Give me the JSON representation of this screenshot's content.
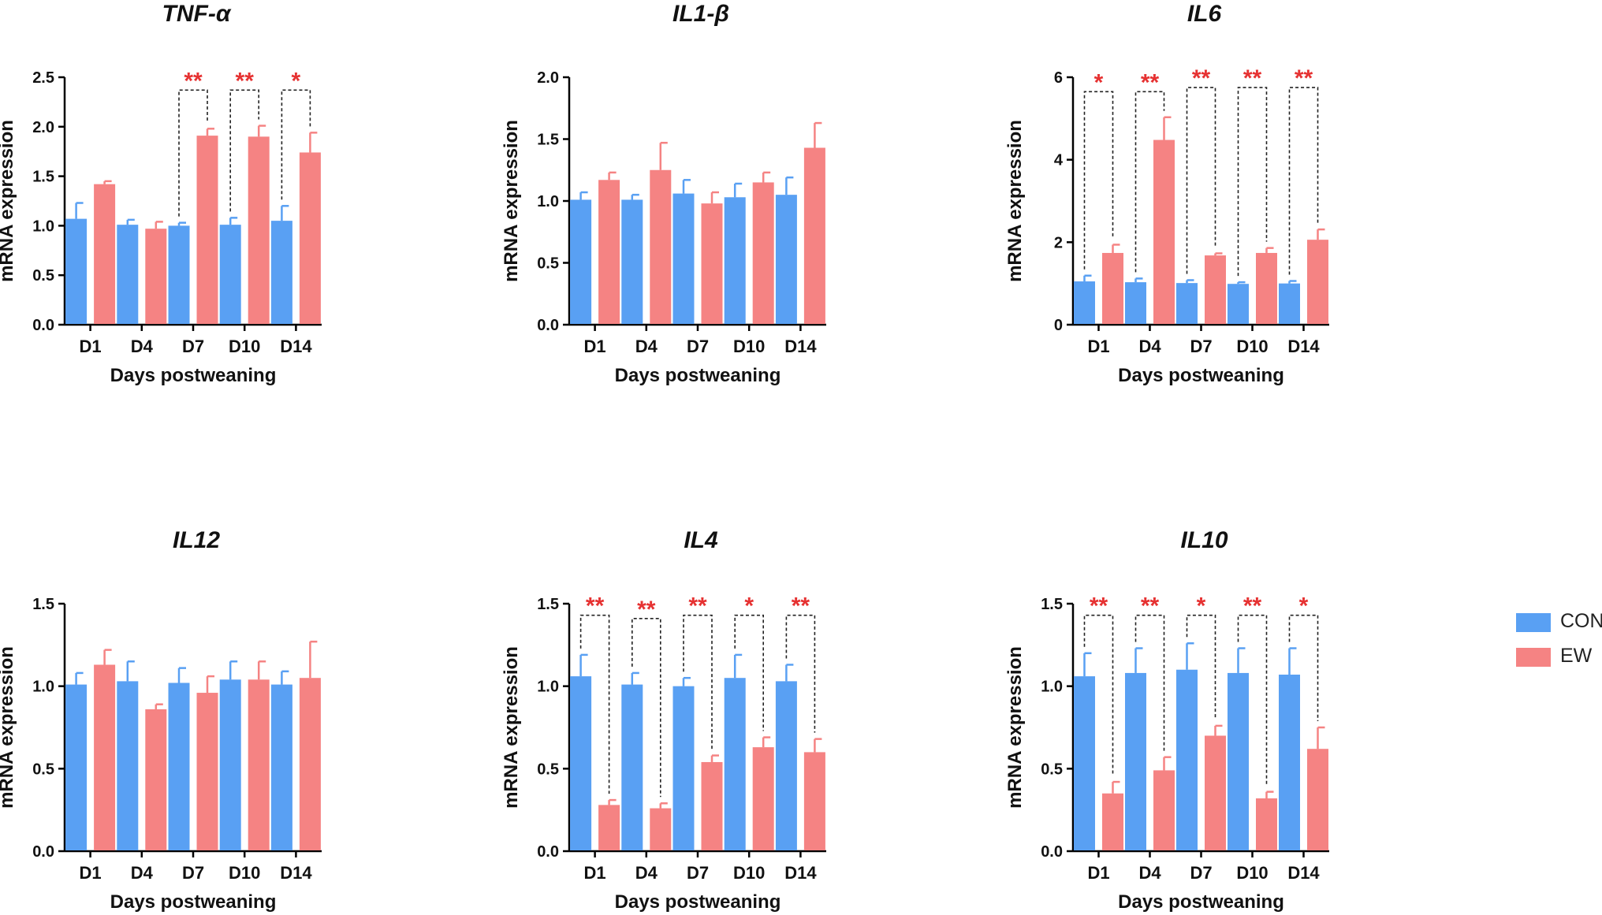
{
  "colors": {
    "con": "#59a0f3",
    "ew": "#f58383",
    "sig": "#e63232",
    "axis": "#000000"
  },
  "legend": {
    "con": "CON",
    "ew": "EW"
  },
  "chart_data": [
    {
      "type": "bar",
      "title": "TNF-α",
      "categories": [
        "D1",
        "D4",
        "D7",
        "D10",
        "D14"
      ],
      "xlabel": "Days postweaning",
      "ylabel": "mRNA expression",
      "ylim": [
        0,
        2.5
      ],
      "yticks": [
        "0.0",
        "0.5",
        "1.0",
        "1.5",
        "2.0",
        "2.5"
      ],
      "series": [
        {
          "name": "CON",
          "values": [
            1.07,
            1.01,
            1.0,
            1.01,
            1.05
          ],
          "errors": [
            0.16,
            0.05,
            0.03,
            0.07,
            0.15
          ]
        },
        {
          "name": "EW",
          "values": [
            1.42,
            0.97,
            1.91,
            1.9,
            1.74
          ],
          "errors": [
            0.03,
            0.07,
            0.07,
            0.11,
            0.2
          ]
        }
      ],
      "significance": [
        {
          "index": 2,
          "label": "**",
          "bracket": 2.37
        },
        {
          "index": 3,
          "label": "**",
          "bracket": 2.37
        },
        {
          "index": 4,
          "label": "*",
          "bracket": 2.37
        }
      ]
    },
    {
      "type": "bar",
      "title": "IL1-β",
      "categories": [
        "D1",
        "D4",
        "D7",
        "D10",
        "D14"
      ],
      "xlabel": "Days postweaning",
      "ylabel": "mRNA expression",
      "ylim": [
        0,
        2.0
      ],
      "yticks": [
        "0.0",
        "0.5",
        "1.0",
        "1.5",
        "2.0"
      ],
      "series": [
        {
          "name": "CON",
          "values": [
            1.01,
            1.01,
            1.06,
            1.03,
            1.05
          ],
          "errors": [
            0.06,
            0.04,
            0.11,
            0.11,
            0.14
          ]
        },
        {
          "name": "EW",
          "values": [
            1.17,
            1.25,
            0.98,
            1.15,
            1.43
          ],
          "errors": [
            0.06,
            0.22,
            0.09,
            0.08,
            0.2
          ]
        }
      ],
      "significance": []
    },
    {
      "type": "bar",
      "title": "IL6",
      "categories": [
        "D1",
        "D4",
        "D7",
        "D10",
        "D14"
      ],
      "xlabel": "Days postweaning",
      "ylabel": "mRNA expression",
      "ylim": [
        0,
        6
      ],
      "yticks": [
        "0",
        "2",
        "4",
        "6"
      ],
      "series": [
        {
          "name": "CON",
          "values": [
            1.05,
            1.03,
            1.01,
            0.99,
            1.0
          ],
          "errors": [
            0.14,
            0.09,
            0.07,
            0.04,
            0.06
          ]
        },
        {
          "name": "EW",
          "values": [
            1.74,
            4.48,
            1.68,
            1.74,
            2.06
          ],
          "errors": [
            0.2,
            0.55,
            0.05,
            0.12,
            0.25
          ]
        }
      ],
      "significance": [
        {
          "index": 0,
          "label": "*",
          "bracket": 5.65
        },
        {
          "index": 1,
          "label": "**",
          "bracket": 5.65
        },
        {
          "index": 2,
          "label": "**",
          "bracket": 5.75
        },
        {
          "index": 3,
          "label": "**",
          "bracket": 5.75
        },
        {
          "index": 4,
          "label": "**",
          "bracket": 5.75
        }
      ]
    },
    {
      "type": "bar",
      "title": "IL12",
      "categories": [
        "D1",
        "D4",
        "D7",
        "D10",
        "D14"
      ],
      "xlabel": "Days postweaning",
      "ylabel": "mRNA expression",
      "ylim": [
        0,
        1.5
      ],
      "yticks": [
        "0.0",
        "0.5",
        "1.0",
        "1.5"
      ],
      "series": [
        {
          "name": "CON",
          "values": [
            1.01,
            1.03,
            1.02,
            1.04,
            1.01
          ],
          "errors": [
            0.07,
            0.12,
            0.09,
            0.11,
            0.08
          ]
        },
        {
          "name": "EW",
          "values": [
            1.13,
            0.86,
            0.96,
            1.04,
            1.05
          ],
          "errors": [
            0.09,
            0.03,
            0.1,
            0.11,
            0.22
          ]
        }
      ],
      "significance": []
    },
    {
      "type": "bar",
      "title": "IL4",
      "categories": [
        "D1",
        "D4",
        "D7",
        "D10",
        "D14"
      ],
      "xlabel": "Days postweaning",
      "ylabel": "mRNA expression",
      "ylim": [
        0,
        1.5
      ],
      "yticks": [
        "0.0",
        "0.5",
        "1.0",
        "1.5"
      ],
      "series": [
        {
          "name": "CON",
          "values": [
            1.06,
            1.01,
            1.0,
            1.05,
            1.03
          ],
          "errors": [
            0.13,
            0.07,
            0.05,
            0.14,
            0.1
          ]
        },
        {
          "name": "EW",
          "values": [
            0.28,
            0.26,
            0.54,
            0.63,
            0.6
          ],
          "errors": [
            0.03,
            0.03,
            0.04,
            0.06,
            0.08
          ]
        }
      ],
      "significance": [
        {
          "index": 0,
          "label": "**",
          "bracket": 1.43
        },
        {
          "index": 1,
          "label": "**",
          "bracket": 1.41
        },
        {
          "index": 2,
          "label": "**",
          "bracket": 1.43
        },
        {
          "index": 3,
          "label": "*",
          "bracket": 1.43
        },
        {
          "index": 4,
          "label": "**",
          "bracket": 1.43
        }
      ]
    },
    {
      "type": "bar",
      "title": "IL10",
      "categories": [
        "D1",
        "D4",
        "D7",
        "D10",
        "D14"
      ],
      "xlabel": "Days postweaning",
      "ylabel": "mRNA expression",
      "ylim": [
        0,
        1.5
      ],
      "yticks": [
        "0.0",
        "0.5",
        "1.0",
        "1.5"
      ],
      "series": [
        {
          "name": "CON",
          "values": [
            1.06,
            1.08,
            1.1,
            1.08,
            1.07
          ],
          "errors": [
            0.14,
            0.15,
            0.16,
            0.15,
            0.16
          ]
        },
        {
          "name": "EW",
          "values": [
            0.35,
            0.49,
            0.7,
            0.32,
            0.62
          ],
          "errors": [
            0.07,
            0.08,
            0.06,
            0.04,
            0.13
          ]
        }
      ],
      "significance": [
        {
          "index": 0,
          "label": "**",
          "bracket": 1.43
        },
        {
          "index": 1,
          "label": "**",
          "bracket": 1.43
        },
        {
          "index": 2,
          "label": "*",
          "bracket": 1.43
        },
        {
          "index": 3,
          "label": "**",
          "bracket": 1.43
        },
        {
          "index": 4,
          "label": "*",
          "bracket": 1.43
        }
      ]
    }
  ]
}
